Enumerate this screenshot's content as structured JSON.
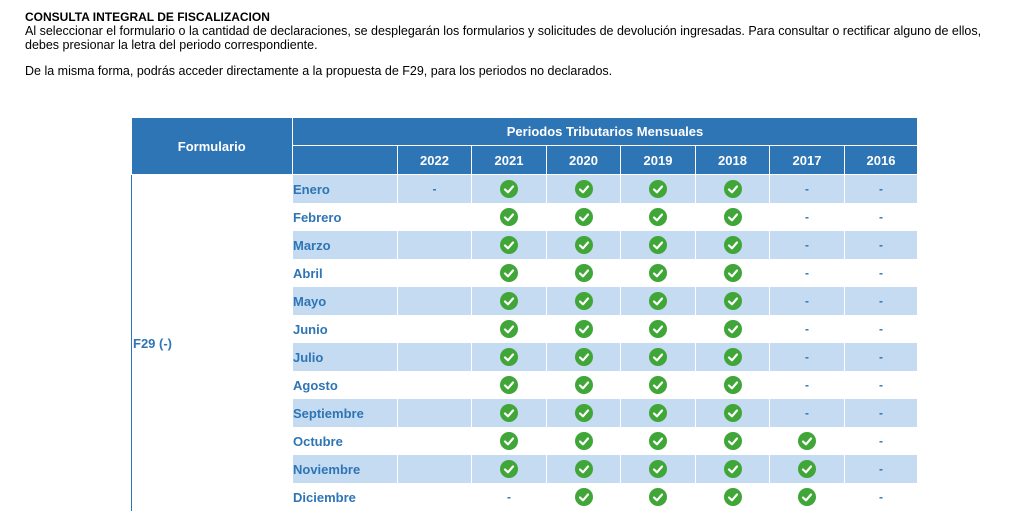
{
  "intro": {
    "title": "CONSULTA INTEGRAL DE FISCALIZACION",
    "paragraph1": "Al seleccionar el formulario o la cantidad de declaraciones, se desplegarán los formularios y solicitudes de devolución ingresadas. Para consultar o rectificar alguno de ellos, debes presionar la letra del periodo correspondiente.",
    "paragraph2": "De la misma forma, podrás acceder directamente a la propuesta de F29, para los periodos no declarados."
  },
  "table": {
    "form_header": "Formulario",
    "periods_header": "Periodos Tributarios Mensuales",
    "years": [
      "2022",
      "2021",
      "2020",
      "2019",
      "2018",
      "2017",
      "2016"
    ],
    "form_name": "F29 (-)",
    "colors": {
      "header": "#2e75b6",
      "stripe": "#c5dbf2",
      "check": "#3fa637"
    },
    "rows": [
      {
        "month": "Enero",
        "cells": [
          "-",
          "check",
          "check",
          "check",
          "check",
          "-",
          "-"
        ]
      },
      {
        "month": "Febrero",
        "cells": [
          "",
          "check",
          "check",
          "check",
          "check",
          "-",
          "-"
        ]
      },
      {
        "month": "Marzo",
        "cells": [
          "",
          "check",
          "check",
          "check",
          "check",
          "-",
          "-"
        ]
      },
      {
        "month": "Abril",
        "cells": [
          "",
          "check",
          "check",
          "check",
          "check",
          "-",
          "-"
        ]
      },
      {
        "month": "Mayo",
        "cells": [
          "",
          "check",
          "check",
          "check",
          "check",
          "-",
          "-"
        ]
      },
      {
        "month": "Junio",
        "cells": [
          "",
          "check",
          "check",
          "check",
          "check",
          "-",
          "-"
        ]
      },
      {
        "month": "Julio",
        "cells": [
          "",
          "check",
          "check",
          "check",
          "check",
          "-",
          "-"
        ]
      },
      {
        "month": "Agosto",
        "cells": [
          "",
          "check",
          "check",
          "check",
          "check",
          "-",
          "-"
        ]
      },
      {
        "month": "Septiembre",
        "cells": [
          "",
          "check",
          "check",
          "check",
          "check",
          "-",
          "-"
        ]
      },
      {
        "month": "Octubre",
        "cells": [
          "",
          "check",
          "check",
          "check",
          "check",
          "check",
          "-"
        ]
      },
      {
        "month": "Noviembre",
        "cells": [
          "",
          "check",
          "check",
          "check",
          "check",
          "check",
          "-"
        ]
      },
      {
        "month": "Diciembre",
        "cells": [
          "",
          "-",
          "check",
          "check",
          "check",
          "check",
          "-"
        ]
      }
    ]
  }
}
